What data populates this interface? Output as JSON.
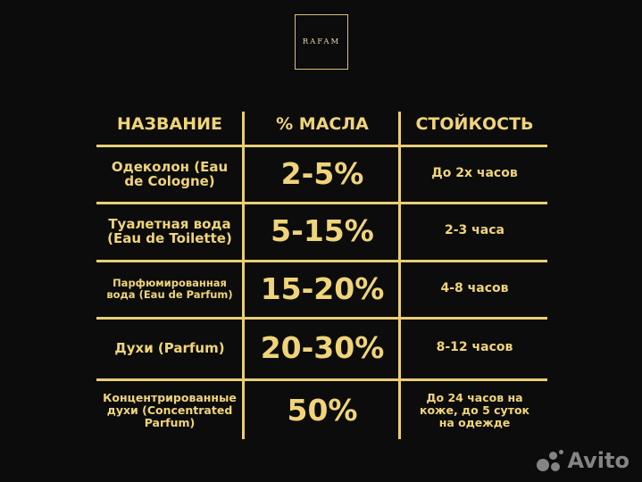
{
  "logo": {
    "text": "RAFAM"
  },
  "table": {
    "headers": [
      "НАЗВАНИЕ",
      "% МАСЛА",
      "СТОЙКОСТЬ"
    ],
    "rows": [
      {
        "name": "Одеколон (Eau de Cologne)",
        "oil": "2-5%",
        "duration": "До 2х часов"
      },
      {
        "name": "Туалетная вода (Eau de Toilette)",
        "oil": "5-15%",
        "duration": "2-3 часа"
      },
      {
        "name": "Парфюмированная вода (Eau de Parfum)",
        "oil": "15-20%",
        "duration": "4-8 часов"
      },
      {
        "name": "Духи (Parfum)",
        "oil": "20-30%",
        "duration": "8-12 часов"
      },
      {
        "name": "Концентрированные духи (Concentrated Parfum)",
        "oil": "50%",
        "duration": "До 24 часов на коже, до 5 суток на одежде"
      }
    ]
  },
  "watermark": {
    "text": "Avito"
  },
  "colors": {
    "background": "#0c0c0c",
    "gold": "#f0d47a"
  }
}
